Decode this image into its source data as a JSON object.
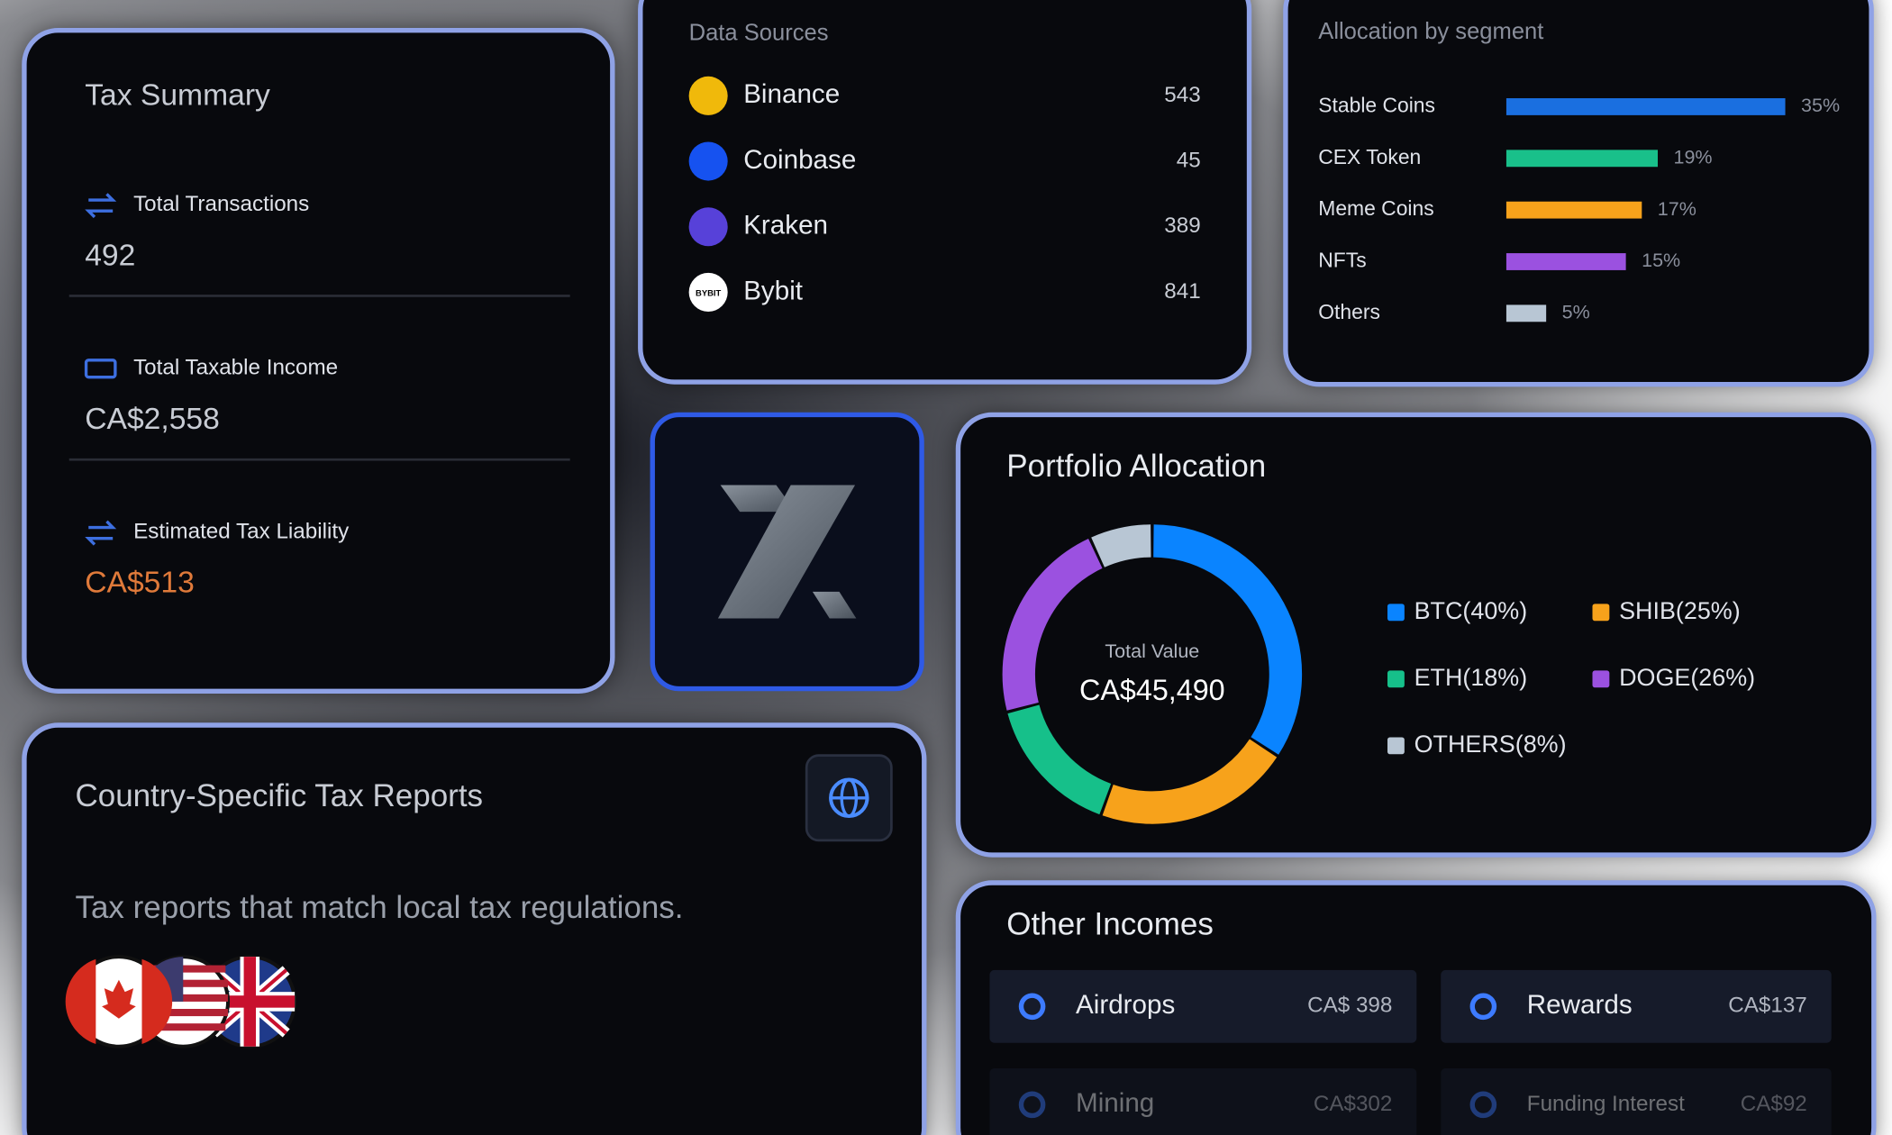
{
  "tax_summary": {
    "title": "Tax Summary",
    "items": [
      {
        "label": "Total Transactions",
        "value": "492"
      },
      {
        "label": "Total Taxable Income",
        "value": "CA$2,558"
      },
      {
        "label": "Estimated Tax Liability",
        "value": "CA$513"
      }
    ]
  },
  "data_sources": {
    "title": "Data Sources",
    "items": [
      {
        "name": "Binance",
        "count": 543,
        "color": "#f0b90b"
      },
      {
        "name": "Coinbase",
        "count": 45,
        "color": "#1652f0"
      },
      {
        "name": "Kraken",
        "count": 389,
        "color": "#5741d9"
      },
      {
        "name": "Bybit",
        "count": 841,
        "color": "#ffffff",
        "icon_text": "BYBIT"
      }
    ]
  },
  "allocation_by_segment": {
    "title": "Allocation by segment",
    "categories": [
      "Stable Coins",
      "CEX Token",
      "Meme Coins",
      "NFTs",
      "Others"
    ],
    "values": [
      35,
      19,
      17,
      15,
      5
    ],
    "value_labels": [
      "35%",
      "19%",
      "17%",
      "15%",
      "5%"
    ],
    "colors": [
      "#1a6fe0",
      "#19c08a",
      "#f7a21b",
      "#9b51e0",
      "#b8c6d4"
    ]
  },
  "portfolio_allocation": {
    "title": "Portfolio Allocation",
    "center_label": "Total Value",
    "center_value": "CA$45,490",
    "segments": [
      {
        "label": "BTC(40%)",
        "value": 40,
        "color": "#0a84ff"
      },
      {
        "label": "SHIB(25%)",
        "value": 25,
        "color": "#f7a21b"
      },
      {
        "label": "ETH(18%)",
        "value": 18,
        "color": "#16c08a"
      },
      {
        "label": "DOGE(26%)",
        "value": 26,
        "color": "#9b51e0"
      },
      {
        "label": "OTHERS(8%)",
        "value": 8,
        "color": "#b8c6d4"
      }
    ]
  },
  "country_reports": {
    "title": "Country-Specific Tax Reports",
    "subtitle": "Tax reports that match local tax regulations."
  },
  "other_incomes": {
    "title": "Other Incomes",
    "items": [
      {
        "name": "Airdrops",
        "amount": "CA$ 398"
      },
      {
        "name": "Rewards",
        "amount": "CA$137"
      },
      {
        "name": "Mining",
        "amount": "CA$302"
      },
      {
        "name": "Funding Interest",
        "amount": "CA$92"
      }
    ]
  }
}
